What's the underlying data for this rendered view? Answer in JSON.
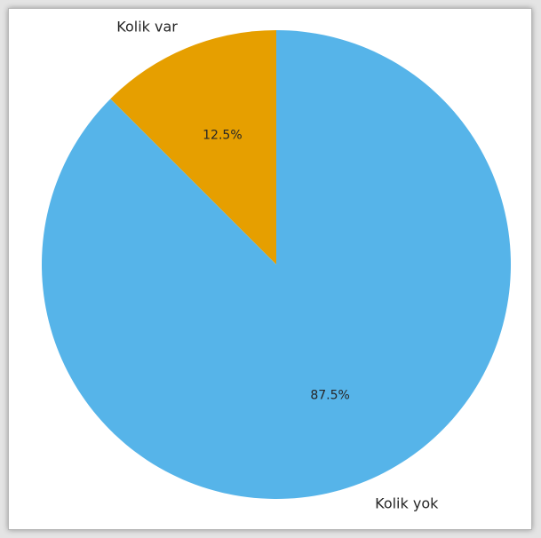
{
  "chart_data": {
    "type": "pie",
    "title": "",
    "categories": [
      "Kolik var",
      "Kolik yok"
    ],
    "values": [
      12.5,
      87.5
    ],
    "value_labels": [
      "12.5%",
      "87.5%"
    ],
    "colors": [
      "#E69F00",
      "#56B4E9"
    ],
    "start_angle": "top",
    "direction": "counterclockwise",
    "legend": "none"
  }
}
